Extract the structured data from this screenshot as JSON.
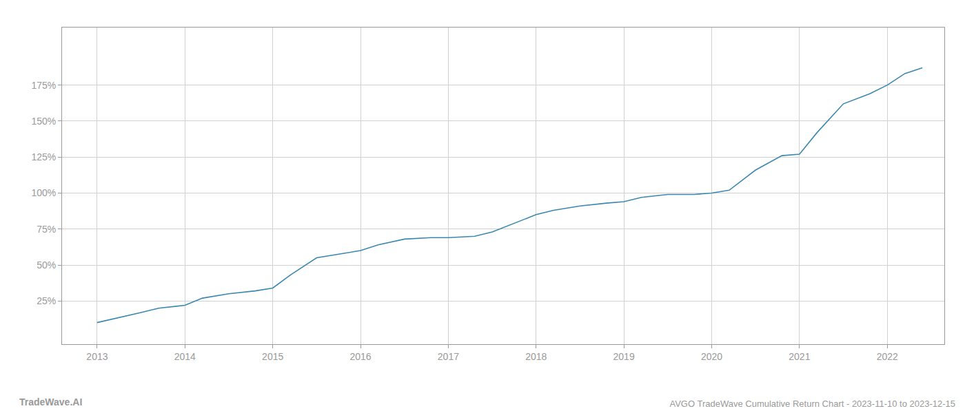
{
  "chart_data": {
    "type": "line",
    "title": "AVGO TradeWave Cumulative Return Chart - 2023-11-10 to 2023-12-15",
    "annotations": [
      "TradeWave.AI"
    ],
    "x": [
      2013.0,
      2013.15,
      2013.3,
      2013.5,
      2013.7,
      2013.85,
      2014.0,
      2014.2,
      2014.5,
      2014.8,
      2015.0,
      2015.2,
      2015.5,
      2015.8,
      2016.0,
      2016.2,
      2016.5,
      2016.8,
      2017.0,
      2017.15,
      2017.3,
      2017.5,
      2017.8,
      2018.0,
      2018.2,
      2018.5,
      2018.8,
      2019.0,
      2019.2,
      2019.5,
      2019.8,
      2020.0,
      2020.2,
      2020.5,
      2020.8,
      2021.0,
      2021.2,
      2021.5,
      2021.8,
      2022.0,
      2022.2,
      2022.4
    ],
    "values": [
      10,
      12,
      14,
      17,
      20,
      21,
      22,
      27,
      30,
      32,
      34,
      43,
      55,
      58,
      60,
      64,
      68,
      69,
      69,
      69.5,
      70,
      73,
      80,
      85,
      88,
      91,
      93,
      94,
      97,
      99,
      99,
      100,
      102,
      116,
      126,
      127,
      142,
      162,
      169,
      175,
      183,
      187
    ],
    "color": "#3a87b0",
    "xlim": [
      2012.6,
      2022.65
    ],
    "xticks": [
      2013,
      2014,
      2015,
      2016,
      2017,
      2018,
      2019,
      2020,
      2021,
      2022
    ],
    "ylim": [
      -5,
      215
    ],
    "yticks": [
      {
        "value": 25,
        "label": "25%"
      },
      {
        "value": 50,
        "label": "50%"
      },
      {
        "value": 75,
        "label": "75%"
      },
      {
        "value": 100,
        "label": "100%"
      },
      {
        "value": 125,
        "label": "125%"
      },
      {
        "value": 150,
        "label": "150%"
      },
      {
        "value": 175,
        "label": "175%"
      }
    ],
    "grid": true
  }
}
